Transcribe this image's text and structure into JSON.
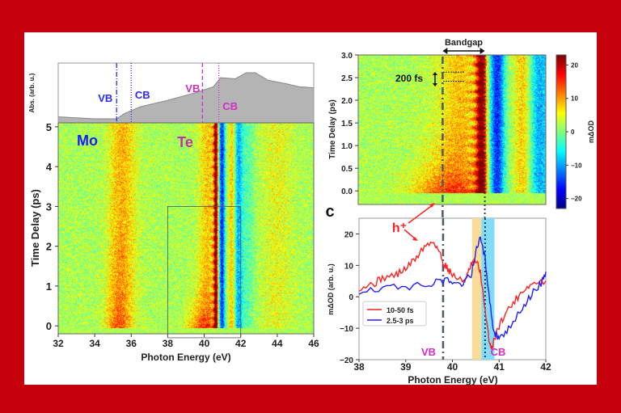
{
  "chart_data": [
    {
      "type": "area",
      "panel": "left-top",
      "ylabel": "Abs. (arb. u.)",
      "xlim": [
        32,
        46
      ],
      "x": [
        32,
        34,
        35.2,
        35.6,
        36.5,
        38,
        39.5,
        40.5,
        40.9,
        41.7,
        42.3,
        42.8,
        43.5,
        44.5,
        45.2,
        46
      ],
      "y": [
        0.12,
        0.08,
        0.08,
        0.18,
        0.32,
        0.45,
        0.6,
        0.72,
        0.9,
        0.88,
        1.0,
        1.0,
        0.85,
        0.78,
        0.72,
        0.7
      ],
      "fill_color": "#b4b4b4",
      "markers": [
        {
          "label": "VB",
          "x": 35.2,
          "color": "#2a2aff",
          "style": "dash-dot"
        },
        {
          "label": "CB",
          "x": 36.0,
          "color": "#2a2aff",
          "style": "dotted"
        },
        {
          "label": "VB",
          "x": 39.9,
          "color": "#d030c0",
          "style": "dashed"
        },
        {
          "label": "CB",
          "x": 40.8,
          "color": "#d030c0",
          "style": "dotted"
        }
      ]
    },
    {
      "type": "heatmap",
      "panel": "left-bottom",
      "xlabel": "Photon Energy (eV)",
      "ylabel": "Time Delay (ps)",
      "xlim": [
        32,
        46
      ],
      "ylim": [
        -0.2,
        5.1
      ],
      "xticks": [
        "32",
        "34",
        "36",
        "38",
        "40",
        "42",
        "44",
        "46"
      ],
      "yticks": [
        "0",
        "1",
        "2",
        "3",
        "4",
        "5"
      ],
      "annotations": [
        {
          "text": "Mo",
          "color": "#1a1aff"
        },
        {
          "text": "Te",
          "color": "#c030b0"
        }
      ],
      "inset_box": {
        "xlim": [
          38,
          42
        ],
        "ylim": [
          -0.3,
          3.0
        ]
      }
    },
    {
      "type": "heatmap",
      "panel": "right-top",
      "ylabel": "Time Delay (ps)",
      "xlim": [
        38,
        42
      ],
      "ylim": [
        -0.3,
        3.0
      ],
      "yticks": [
        "0.0",
        "0.5",
        "1.0",
        "1.5",
        "2.0",
        "2.5",
        "3.0"
      ],
      "colorbar": {
        "label": "mΔOD",
        "range": [
          -23,
          23
        ],
        "ticks": [
          "20",
          "10",
          "0",
          "−10",
          "−20"
        ],
        "colormap": "jet"
      },
      "annotations": [
        {
          "text": "Bandgap",
          "x_from": 39.8,
          "x_to": 40.7
        },
        {
          "text": "200 fs",
          "y_from": 2.42,
          "y_to": 2.62
        }
      ],
      "vlines": [
        39.8,
        40.7
      ]
    },
    {
      "type": "line",
      "panel": "right-bottom",
      "label": "c",
      "xlabel": "Photon Energy (eV)",
      "ylabel": "mΔOD (arb. u.)",
      "xlim": [
        38,
        42
      ],
      "ylim": [
        -20,
        25
      ],
      "xticks": [
        "38",
        "39",
        "40",
        "41",
        "42"
      ],
      "yticks": [
        "20",
        "10",
        "0",
        "−10",
        "−20"
      ],
      "legend_position": "lower-left",
      "series": [
        {
          "name": "10-50 fs",
          "color": "#ff2020",
          "x": [
            38,
            38.3,
            38.5,
            38.8,
            39.0,
            39.2,
            39.4,
            39.6,
            39.7,
            39.8,
            39.9,
            40.0,
            40.2,
            40.3,
            40.4,
            40.5,
            40.6,
            40.7,
            40.8,
            40.85,
            40.95,
            41.1,
            41.3,
            41.5,
            41.7,
            42
          ],
          "y": [
            3,
            4,
            6,
            7,
            9,
            12,
            16,
            17.5,
            15,
            11,
            9,
            7,
            5,
            6,
            10,
            11.5,
            8,
            -5,
            -15,
            -16,
            -11,
            -6,
            -2,
            2,
            4,
            5
          ]
        },
        {
          "name": "2.5-3 ps",
          "color": "#2020ff",
          "x": [
            38,
            38.5,
            39,
            39.5,
            39.8,
            40.0,
            40.2,
            40.4,
            40.5,
            40.6,
            40.7,
            40.8,
            40.9,
            41.0,
            41.2,
            41.5,
            41.7,
            41.9,
            42
          ],
          "y": [
            2,
            3,
            3,
            4,
            5,
            5,
            4,
            7,
            14,
            19,
            12,
            -2,
            -12,
            -13,
            -10,
            -4,
            1,
            4,
            8
          ]
        }
      ],
      "bands": [
        {
          "xlim": [
            40.42,
            40.62
          ],
          "color": "#f8dc98"
        },
        {
          "xlim": [
            40.62,
            40.9
          ],
          "color": "#80dcf8"
        }
      ],
      "vlines": [
        39.8,
        40.7
      ],
      "annotations": [
        {
          "text": "h⁺",
          "color": "#ff2020"
        },
        {
          "text": "VB",
          "color": "#d030c0"
        },
        {
          "text": "CB",
          "color": "#d030c0"
        }
      ]
    }
  ]
}
